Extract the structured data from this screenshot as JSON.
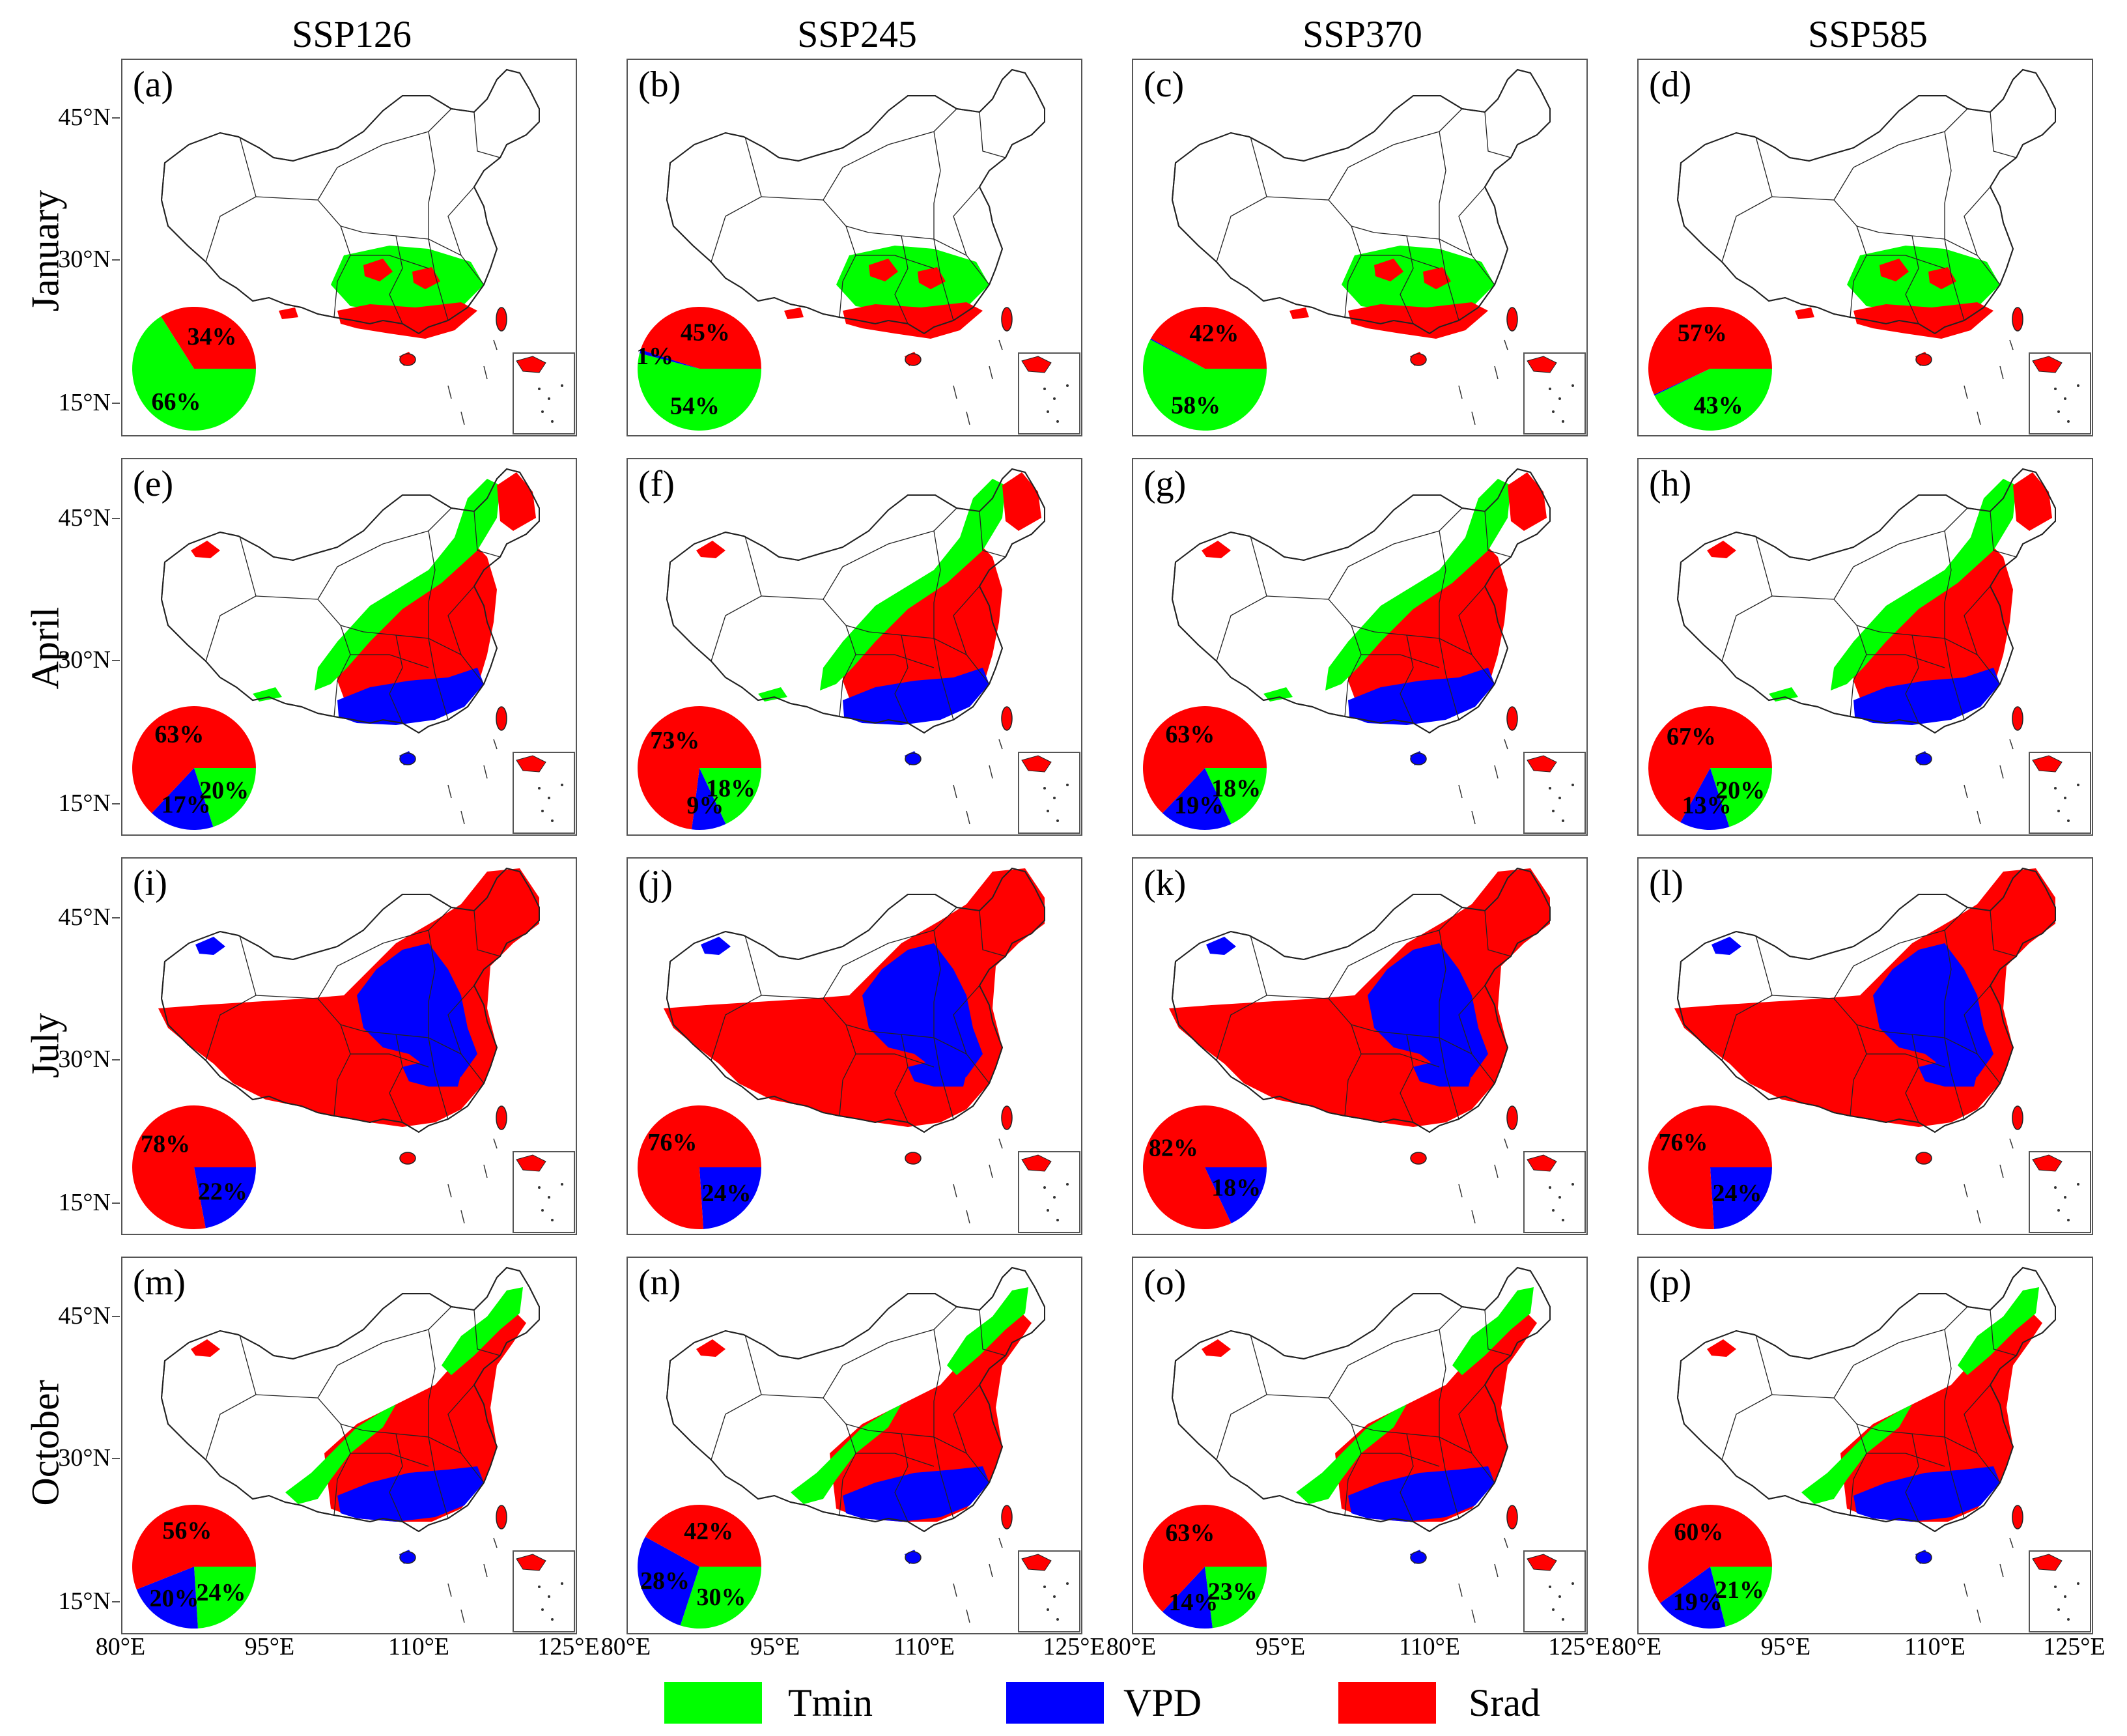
{
  "colors": {
    "tmin": "#00ff00",
    "vpd": "#0000ff",
    "srad": "#ff0000"
  },
  "columns": [
    "SSP126",
    "SSP245",
    "SSP370",
    "SSP585"
  ],
  "rows": [
    "January",
    "April",
    "July",
    "October"
  ],
  "lat_labels": [
    "45°N",
    "30°N",
    "15°N"
  ],
  "lon_labels": [
    "80°E",
    "95°E",
    "110°E",
    "125°E"
  ],
  "legend": [
    {
      "label": "Tmin",
      "color": "#00ff00"
    },
    {
      "label": "VPD",
      "color": "#0000ff"
    },
    {
      "label": "Srad",
      "color": "#ff0000"
    }
  ],
  "panels": [
    {
      "label": "(a)",
      "month": "January",
      "scenario": "SSP126",
      "pie": {
        "tmin": 66,
        "vpd": 0,
        "srad": 34
      },
      "labels": {
        "tmin": "66%",
        "vpd": "",
        "srad": "34%"
      }
    },
    {
      "label": "(b)",
      "month": "January",
      "scenario": "SSP245",
      "pie": {
        "tmin": 54,
        "vpd": 1,
        "srad": 45
      },
      "labels": {
        "tmin": "54%",
        "vpd": "1%",
        "srad": "45%"
      }
    },
    {
      "label": "(c)",
      "month": "January",
      "scenario": "SSP370",
      "pie": {
        "tmin": 58,
        "vpd": 0.3,
        "srad": 42
      },
      "labels": {
        "tmin": "58%",
        "vpd": "",
        "srad": "42%"
      }
    },
    {
      "label": "(d)",
      "month": "January",
      "scenario": "SSP585",
      "pie": {
        "tmin": 43,
        "vpd": 0.3,
        "srad": 57
      },
      "labels": {
        "tmin": "43%",
        "vpd": "",
        "srad": "57%"
      }
    },
    {
      "label": "(e)",
      "month": "April",
      "scenario": "SSP126",
      "pie": {
        "tmin": 20,
        "vpd": 17,
        "srad": 63
      },
      "labels": {
        "tmin": "20%",
        "vpd": "17%",
        "srad": "63%"
      }
    },
    {
      "label": "(f)",
      "month": "April",
      "scenario": "SSP245",
      "pie": {
        "tmin": 18,
        "vpd": 9,
        "srad": 73
      },
      "labels": {
        "tmin": "18%",
        "vpd": "9%",
        "srad": "73%"
      }
    },
    {
      "label": "(g)",
      "month": "April",
      "scenario": "SSP370",
      "pie": {
        "tmin": 18,
        "vpd": 19,
        "srad": 63
      },
      "labels": {
        "tmin": "18%",
        "vpd": "19%",
        "srad": "63%"
      }
    },
    {
      "label": "(h)",
      "month": "April",
      "scenario": "SSP585",
      "pie": {
        "tmin": 20,
        "vpd": 13,
        "srad": 67
      },
      "labels": {
        "tmin": "20%",
        "vpd": "13%",
        "srad": "67%"
      }
    },
    {
      "label": "(i)",
      "month": "July",
      "scenario": "SSP126",
      "pie": {
        "tmin": 0,
        "vpd": 22,
        "srad": 78
      },
      "labels": {
        "tmin": "",
        "vpd": "22%",
        "srad": "78%"
      }
    },
    {
      "label": "(j)",
      "month": "July",
      "scenario": "SSP245",
      "pie": {
        "tmin": 0,
        "vpd": 24,
        "srad": 76
      },
      "labels": {
        "tmin": "",
        "vpd": "24%",
        "srad": "76%"
      }
    },
    {
      "label": "(k)",
      "month": "July",
      "scenario": "SSP370",
      "pie": {
        "tmin": 0,
        "vpd": 18,
        "srad": 82
      },
      "labels": {
        "tmin": "",
        "vpd": "18%",
        "srad": "82%"
      }
    },
    {
      "label": "(l)",
      "month": "July",
      "scenario": "SSP585",
      "pie": {
        "tmin": 0,
        "vpd": 24,
        "srad": 76
      },
      "labels": {
        "tmin": "",
        "vpd": "24%",
        "srad": "76%"
      }
    },
    {
      "label": "(m)",
      "month": "October",
      "scenario": "SSP126",
      "pie": {
        "tmin": 24,
        "vpd": 20,
        "srad": 56
      },
      "labels": {
        "tmin": "24%",
        "vpd": "20%",
        "srad": "56%"
      }
    },
    {
      "label": "(n)",
      "month": "October",
      "scenario": "SSP245",
      "pie": {
        "tmin": 30,
        "vpd": 28,
        "srad": 42
      },
      "labels": {
        "tmin": "30%",
        "vpd": "28%",
        "srad": "42%"
      }
    },
    {
      "label": "(o)",
      "month": "October",
      "scenario": "SSP370",
      "pie": {
        "tmin": 23,
        "vpd": 14,
        "srad": 63
      },
      "labels": {
        "tmin": "23%",
        "vpd": "14%",
        "srad": "63%"
      }
    },
    {
      "label": "(p)",
      "month": "October",
      "scenario": "SSP585",
      "pie": {
        "tmin": 21,
        "vpd": 19,
        "srad": 60
      },
      "labels": {
        "tmin": "21%",
        "vpd": "19%",
        "srad": "60%"
      }
    }
  ]
}
